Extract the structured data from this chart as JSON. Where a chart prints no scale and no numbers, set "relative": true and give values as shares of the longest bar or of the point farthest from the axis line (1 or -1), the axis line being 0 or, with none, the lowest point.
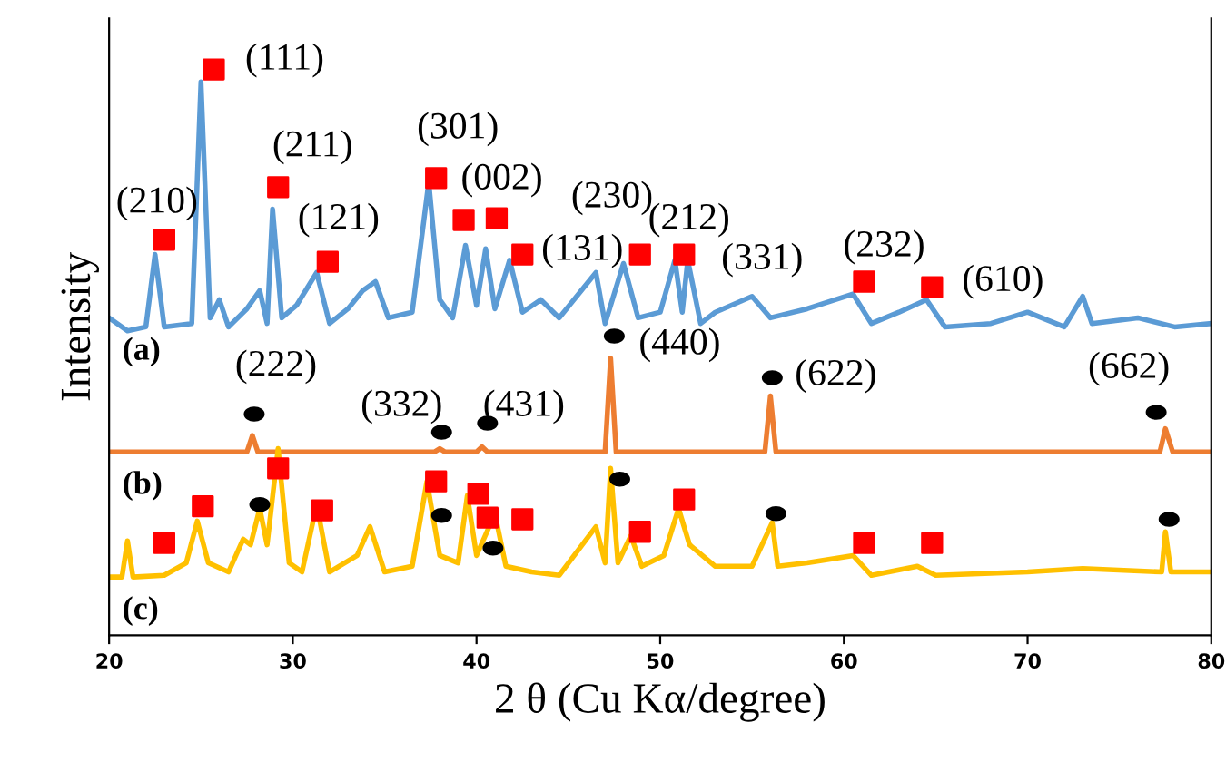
{
  "chart_data": {
    "type": "line",
    "relative": true,
    "xlabel": "2 θ (Cu Kα/degree)",
    "ylabel": "Intensity",
    "xlim": [
      20,
      80
    ],
    "xticks": [
      20,
      30,
      40,
      50,
      60,
      70,
      80
    ],
    "tick_labels": "x",
    "grid": false,
    "legend": false,
    "series": [
      {
        "name": "(a)",
        "color": "#5b9bd5",
        "x": [
          20,
          21,
          22,
          22.5,
          23,
          24.5,
          25,
          25.5,
          26,
          26.5,
          27.5,
          28.2,
          28.6,
          28.9,
          29.4,
          30.2,
          31.3,
          32,
          33,
          33.8,
          34.5,
          35.2,
          36.5,
          37.4,
          38,
          38.7,
          39.4,
          40,
          40.5,
          41,
          41.8,
          42.5,
          43.5,
          44.5,
          46.5,
          47,
          48,
          48.8,
          50,
          50.8,
          51.2,
          51.5,
          52.2,
          53,
          55,
          56,
          58,
          60.5,
          61.5,
          63,
          64.5,
          65.5,
          68,
          70,
          72,
          73,
          73.5,
          76,
          78,
          80
        ],
        "values": [
          0.561,
          0.538,
          0.545,
          0.673,
          0.545,
          0.551,
          0.978,
          0.561,
          0.593,
          0.545,
          0.577,
          0.609,
          0.551,
          0.753,
          0.561,
          0.583,
          0.641,
          0.551,
          0.577,
          0.609,
          0.625,
          0.561,
          0.571,
          0.801,
          0.593,
          0.561,
          0.689,
          0.583,
          0.683,
          0.577,
          0.663,
          0.571,
          0.593,
          0.561,
          0.641,
          0.551,
          0.657,
          0.561,
          0.571,
          0.663,
          0.571,
          0.663,
          0.551,
          0.571,
          0.599,
          0.561,
          0.577,
          0.603,
          0.551,
          0.571,
          0.593,
          0.545,
          0.551,
          0.571,
          0.545,
          0.599,
          0.551,
          0.561,
          0.545,
          0.551
        ]
      },
      {
        "name": "(b)",
        "color": "#ed7d31",
        "x": [
          20,
          27.5,
          27.8,
          28.1,
          37.7,
          38,
          38.3,
          40,
          40.3,
          40.6,
          47,
          47.3,
          47.6,
          55.7,
          56,
          56.3,
          77.2,
          77.5,
          77.9,
          80
        ],
        "values": [
          0.324,
          0.324,
          0.353,
          0.324,
          0.324,
          0.33,
          0.324,
          0.324,
          0.333,
          0.324,
          0.324,
          0.49,
          0.324,
          0.324,
          0.423,
          0.324,
          0.324,
          0.365,
          0.324,
          0.324
        ]
      },
      {
        "name": "(c)",
        "color": "#ffc000",
        "x": [
          20,
          20.7,
          21,
          21.3,
          23,
          24.2,
          24.8,
          25.4,
          26.5,
          27.3,
          27.7,
          28.2,
          28.6,
          29.2,
          29.8,
          30.5,
          31.3,
          32,
          33.5,
          34.2,
          35,
          36.5,
          37.3,
          38,
          39,
          39.5,
          40,
          41,
          41.6,
          43,
          44.5,
          46.5,
          47,
          47.3,
          47.7,
          48.4,
          49,
          50.2,
          51,
          51.6,
          53,
          55,
          56.1,
          56.4,
          58,
          60.5,
          61.5,
          64,
          65,
          70,
          73,
          77.3,
          77.5,
          77.8,
          80
        ],
        "values": [
          0.103,
          0.103,
          0.167,
          0.103,
          0.106,
          0.128,
          0.202,
          0.128,
          0.112,
          0.17,
          0.16,
          0.224,
          0.16,
          0.33,
          0.128,
          0.112,
          0.231,
          0.112,
          0.141,
          0.192,
          0.112,
          0.122,
          0.272,
          0.141,
          0.128,
          0.247,
          0.141,
          0.215,
          0.122,
          0.112,
          0.106,
          0.192,
          0.128,
          0.295,
          0.128,
          0.176,
          0.122,
          0.141,
          0.224,
          0.16,
          0.122,
          0.122,
          0.199,
          0.122,
          0.128,
          0.141,
          0.106,
          0.122,
          0.106,
          0.112,
          0.118,
          0.112,
          0.183,
          0.112,
          0.112
        ]
      },
      {
        "type": "scatter",
        "marker": "square",
        "color": "#ff0000",
        "x": [
          23.0,
          25.7,
          29.2,
          31.9,
          37.8,
          39.3,
          41.1,
          42.5,
          48.9,
          51.3,
          61.1,
          64.8,
          23.0,
          25.1,
          29.2,
          31.6,
          37.8,
          40.1,
          40.6,
          42.5,
          48.9,
          51.3,
          61.1,
          64.8
        ],
        "values": [
          0.699,
          1.0,
          0.792,
          0.66,
          0.808,
          0.734,
          0.737,
          0.673,
          0.673,
          0.673,
          0.625,
          0.615,
          0.163,
          0.228,
          0.295,
          0.221,
          0.272,
          0.25,
          0.208,
          0.205,
          0.183,
          0.24,
          0.163,
          0.163
        ]
      },
      {
        "type": "scatter",
        "marker": "circle",
        "color": "#000000",
        "x": [
          27.9,
          38.1,
          40.6,
          47.5,
          56.1,
          77.0,
          28.2,
          38.1,
          40.9,
          47.8,
          56.3,
          77.7
        ],
        "values": [
          0.391,
          0.359,
          0.375,
          0.529,
          0.455,
          0.394,
          0.231,
          0.212,
          0.154,
          0.276,
          0.215,
          0.205
        ]
      }
    ],
    "annotations": [
      {
        "text": "(210)",
        "x": 23.0,
        "y": 0.699
      },
      {
        "text": "(111)",
        "x": 25.7,
        "y": 1.0
      },
      {
        "text": "(211)",
        "x": 29.2,
        "y": 0.792
      },
      {
        "text": "(121)",
        "x": 31.9,
        "y": 0.66
      },
      {
        "text": "(301)",
        "x": 37.8,
        "y": 0.808
      },
      {
        "text": "(002)",
        "x": 39.3,
        "y": 0.734
      },
      "(230)",
      {
        "text": "(131)",
        "x": 42.5,
        "y": 0.673
      },
      {
        "text": "(212)",
        "x": 48.9,
        "y": 0.673
      },
      {
        "text": "(331)",
        "x": 51.3,
        "y": 0.673
      },
      {
        "text": "(232)",
        "x": 61.1,
        "y": 0.625
      },
      {
        "text": "(610)",
        "x": 64.8,
        "y": 0.615
      },
      {
        "text": "(222)",
        "x": 27.9,
        "y": 0.391
      },
      {
        "text": "(332)",
        "x": 38.1,
        "y": 0.359
      },
      {
        "text": "(431)",
        "x": 40.6,
        "y": 0.375
      },
      {
        "text": "(440)",
        "x": 47.5,
        "y": 0.529
      },
      {
        "text": "(622)",
        "x": 56.1,
        "y": 0.455
      },
      {
        "text": "(662)",
        "x": 77.0,
        "y": 0.394
      }
    ]
  }
}
